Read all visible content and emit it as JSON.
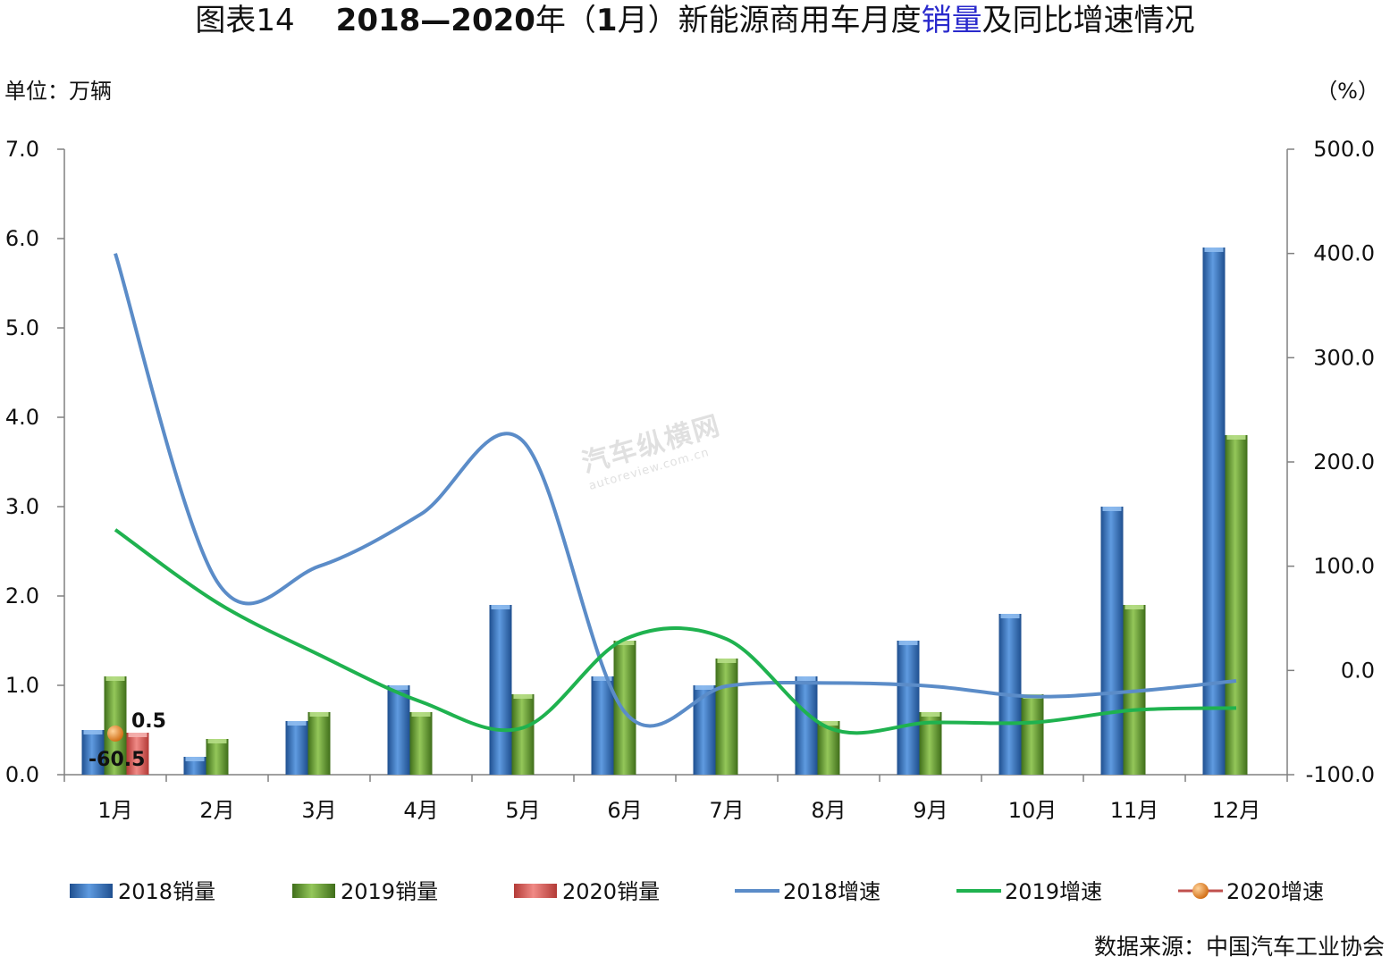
{
  "header": {
    "figure_no": "图表14",
    "title_bold": "2018—2020",
    "title_mid": "年（",
    "title_bold2": "1",
    "title_mid2": "月）新能源商用车月度",
    "title_hl": "销量",
    "title_end": "及同比增速情况"
  },
  "axes": {
    "left_unit": "单位：万辆",
    "right_unit": "（%）"
  },
  "watermark": {
    "brand": "汽车纵横网",
    "url": "autoreview.com.cn"
  },
  "source": "数据来源：中国汽车工业协会",
  "colors": {
    "bar2018": "#3a70b8",
    "bar2019": "#6fa038",
    "bar2020": "#d9534f",
    "line2018": "#5b8cc8",
    "line2019": "#1fb24f",
    "marker2020": "#e7862b"
  },
  "chart_data": {
    "type": "bar+line",
    "categories": [
      "1月",
      "2月",
      "3月",
      "4月",
      "5月",
      "6月",
      "7月",
      "8月",
      "9月",
      "10月",
      "11月",
      "12月"
    ],
    "left_axis": {
      "min": 0,
      "max": 7,
      "step": 1,
      "ticks": [
        "0.0",
        "1.0",
        "2.0",
        "3.0",
        "4.0",
        "5.0",
        "6.0",
        "7.0"
      ]
    },
    "right_axis": {
      "min": -100,
      "max": 500,
      "step": 100,
      "ticks": [
        "-100.0",
        "0.0",
        "100.0",
        "200.0",
        "300.0",
        "400.0",
        "500.0"
      ]
    },
    "bar_series": [
      {
        "name": "2018销量",
        "values": [
          0.5,
          0.2,
          0.6,
          1.0,
          1.9,
          1.1,
          1.0,
          1.1,
          1.5,
          1.8,
          3.0,
          5.9
        ]
      },
      {
        "name": "2019销量",
        "values": [
          1.1,
          0.4,
          0.7,
          0.7,
          0.9,
          1.5,
          1.3,
          0.6,
          0.7,
          0.9,
          1.9,
          3.8
        ]
      },
      {
        "name": "2020销量",
        "values": [
          0.47,
          null,
          null,
          null,
          null,
          null,
          null,
          null,
          null,
          null,
          null,
          null
        ]
      }
    ],
    "line_series": [
      {
        "name": "2018增速",
        "values": [
          400,
          85,
          100,
          150,
          220,
          -40,
          -15,
          -12,
          -15,
          -25,
          -20,
          -10
        ]
      },
      {
        "name": "2019增速",
        "values": [
          135,
          65,
          15,
          -30,
          -55,
          30,
          30,
          -55,
          -50,
          -50,
          -38,
          -36
        ]
      },
      {
        "name": "2020增速",
        "values": [
          -60.5,
          null,
          null,
          null,
          null,
          null,
          null,
          null,
          null,
          null,
          null,
          null
        ]
      }
    ],
    "data_labels": {
      "bar2020": "0.5",
      "growth2020": "-60.5"
    },
    "legend": [
      "2018销量",
      "2019销量",
      "2020销量",
      "2018增速",
      "2019增速",
      "2020增速"
    ],
    "legend_position": "bottom"
  }
}
